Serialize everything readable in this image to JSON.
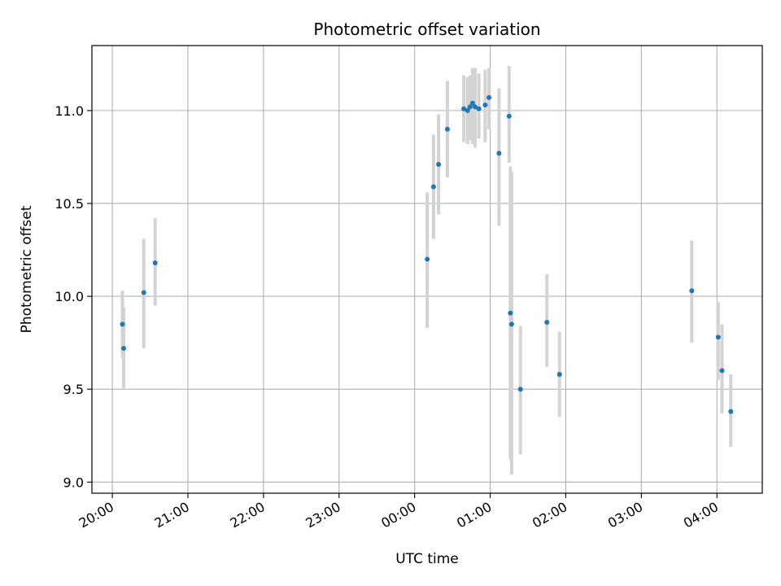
{
  "chart_data": {
    "type": "scatter",
    "title": "Photometric offset variation",
    "xlabel": "UTC time",
    "ylabel": "Photometric offset",
    "grid": true,
    "xlim_hours": [
      -0.27,
      8.6
    ],
    "ylim": [
      8.94,
      11.35
    ],
    "x_ticks": [
      {
        "hour": 0,
        "label": "20:00"
      },
      {
        "hour": 1,
        "label": "21:00"
      },
      {
        "hour": 2,
        "label": "22:00"
      },
      {
        "hour": 3,
        "label": "23:00"
      },
      {
        "hour": 4,
        "label": "00:00"
      },
      {
        "hour": 5,
        "label": "01:00"
      },
      {
        "hour": 6,
        "label": "02:00"
      },
      {
        "hour": 7,
        "label": "03:00"
      },
      {
        "hour": 8,
        "label": "04:00"
      }
    ],
    "y_ticks": [
      {
        "value": 9.0,
        "label": "9.0"
      },
      {
        "value": 9.5,
        "label": "9.5"
      },
      {
        "value": 10.0,
        "label": "10.0"
      },
      {
        "value": 10.5,
        "label": "10.5"
      },
      {
        "value": 11.0,
        "label": "11.0"
      }
    ],
    "marker_color": "#1f77b4",
    "errorbar_color": "#d3d3d3",
    "points": [
      {
        "t": "20:08",
        "y": 9.85,
        "lo": 9.67,
        "hi": 10.03
      },
      {
        "t": "20:09",
        "y": 9.72,
        "lo": 9.5,
        "hi": 9.94
      },
      {
        "t": "20:25",
        "y": 10.02,
        "lo": 9.72,
        "hi": 10.31
      },
      {
        "t": "20:34",
        "y": 10.18,
        "lo": 9.95,
        "hi": 10.42
      },
      {
        "t": "00:10",
        "y": 10.2,
        "lo": 9.83,
        "hi": 10.56
      },
      {
        "t": "00:15",
        "y": 10.59,
        "lo": 10.31,
        "hi": 10.87
      },
      {
        "t": "00:19",
        "y": 10.71,
        "lo": 10.44,
        "hi": 10.98
      },
      {
        "t": "00:26",
        "y": 10.9,
        "lo": 10.64,
        "hi": 11.16
      },
      {
        "t": "00:39",
        "y": 11.01,
        "lo": 10.83,
        "hi": 11.19
      },
      {
        "t": "00:42",
        "y": 11.0,
        "lo": 10.82,
        "hi": 11.18
      },
      {
        "t": "00:44",
        "y": 11.02,
        "lo": 10.84,
        "hi": 11.19
      },
      {
        "t": "00:46",
        "y": 11.04,
        "lo": 10.82,
        "hi": 11.23
      },
      {
        "t": "00:48",
        "y": 11.02,
        "lo": 10.8,
        "hi": 11.23
      },
      {
        "t": "00:51",
        "y": 11.01,
        "lo": 10.85,
        "hi": 11.2
      },
      {
        "t": "00:56",
        "y": 11.03,
        "lo": 10.83,
        "hi": 11.22
      },
      {
        "t": "00:59",
        "y": 11.07,
        "lo": 10.9,
        "hi": 11.23
      },
      {
        "t": "01:07",
        "y": 10.77,
        "lo": 10.38,
        "hi": 11.12
      },
      {
        "t": "01:15",
        "y": 10.97,
        "lo": 10.72,
        "hi": 11.24
      },
      {
        "t": "01:16",
        "y": 9.91,
        "lo": 9.12,
        "hi": 10.7
      },
      {
        "t": "01:17",
        "y": 9.85,
        "lo": 9.04,
        "hi": 10.67
      },
      {
        "t": "01:24",
        "y": 9.5,
        "lo": 9.15,
        "hi": 9.84
      },
      {
        "t": "01:45",
        "y": 9.86,
        "lo": 9.62,
        "hi": 10.12
      },
      {
        "t": "01:55",
        "y": 9.58,
        "lo": 9.35,
        "hi": 9.81
      },
      {
        "t": "03:40",
        "y": 10.03,
        "lo": 9.75,
        "hi": 10.3
      },
      {
        "t": "04:01",
        "y": 9.78,
        "lo": 9.55,
        "hi": 9.97
      },
      {
        "t": "04:04",
        "y": 9.6,
        "lo": 9.37,
        "hi": 9.85
      },
      {
        "t": "04:11",
        "y": 9.38,
        "lo": 9.19,
        "hi": 9.58
      }
    ]
  }
}
